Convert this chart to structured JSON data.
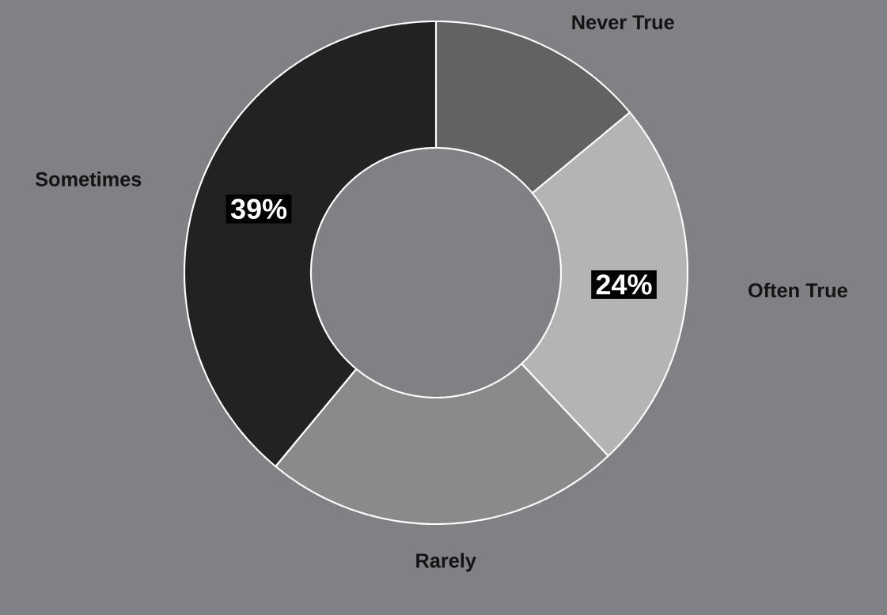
{
  "chart_data": {
    "type": "donut",
    "categories": [
      "Never True",
      "Often True",
      "Rarely",
      "Sometimes"
    ],
    "values": [
      14,
      24,
      23,
      39
    ],
    "colors": [
      "#626262",
      "#b4b4b4",
      "#8a8a8a",
      "#222222"
    ],
    "value_labels": [
      null,
      "24%",
      null,
      "39%"
    ]
  }
}
